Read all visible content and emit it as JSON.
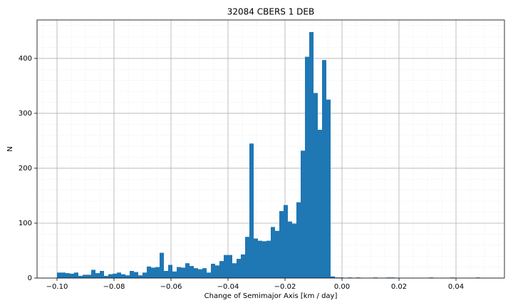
{
  "chart_data": {
    "type": "histogram",
    "title": "32084 CBERS 1 DEB",
    "xlabel": "Change of Semimajor Axis [km / day]",
    "ylabel": "N",
    "color": "#1f77b4",
    "grid": true,
    "minor_grid": true,
    "bins": [
      -0.1,
      -0.0985,
      -0.097,
      -0.0955,
      -0.094,
      -0.0925,
      -0.091,
      -0.0895,
      -0.088,
      -0.0865,
      -0.085,
      -0.0835,
      -0.082,
      -0.0805,
      -0.079,
      -0.0775,
      -0.076,
      -0.0745,
      -0.073,
      -0.0715,
      -0.07,
      -0.0685,
      -0.067,
      -0.0655,
      -0.064,
      -0.0625,
      -0.061,
      -0.0595,
      -0.058,
      -0.0565,
      -0.055,
      -0.0535,
      -0.052,
      -0.0505,
      -0.049,
      -0.0475,
      -0.046,
      -0.0445,
      -0.043,
      -0.0415,
      -0.04,
      -0.0385,
      -0.037,
      -0.0355,
      -0.034,
      -0.0325,
      -0.031,
      -0.0295,
      -0.028,
      -0.0265,
      -0.025,
      -0.0235,
      -0.022,
      -0.0205,
      -0.019,
      -0.0175,
      -0.016,
      -0.0145,
      -0.013,
      -0.0115,
      -0.01,
      -0.0085,
      -0.007,
      -0.0055,
      -0.004,
      -0.0025,
      -0.001,
      0.0005,
      0.002,
      0.0035,
      0.005,
      0.0065,
      0.008,
      0.0095,
      0.011,
      0.0125,
      0.014,
      0.0155,
      0.017,
      0.0185,
      0.02,
      0.0215,
      0.023,
      0.0245,
      0.026,
      0.0275,
      0.029,
      0.0305,
      0.032,
      0.0335,
      0.035,
      0.0365,
      0.038,
      0.0395,
      0.041,
      0.0425,
      0.044,
      0.0455,
      0.047,
      0.0485,
      0.05
    ],
    "values": [
      10,
      10,
      9,
      8,
      10,
      4,
      6,
      6,
      15,
      9,
      13,
      4,
      7,
      8,
      10,
      7,
      5,
      13,
      11,
      5,
      10,
      21,
      19,
      20,
      46,
      13,
      24,
      12,
      20,
      19,
      27,
      22,
      18,
      16,
      18,
      10,
      26,
      23,
      31,
      42,
      42,
      27,
      35,
      43,
      75,
      245,
      72,
      68,
      67,
      68,
      93,
      86,
      122,
      133,
      103,
      99,
      138,
      232,
      403,
      448,
      337,
      270,
      397,
      325,
      3,
      1,
      1,
      0,
      1,
      0,
      1,
      0,
      0,
      0,
      1,
      0,
      0,
      1,
      1,
      0,
      0,
      0,
      0,
      0,
      0,
      0,
      0,
      1,
      0,
      0,
      0,
      0,
      1,
      0,
      0,
      0,
      0,
      0,
      1,
      0
    ],
    "xlim": [
      -0.107,
      0.057
    ],
    "xticks": [
      {
        "value": -0.1,
        "label": "−0.10"
      },
      {
        "value": -0.08,
        "label": "−0.08"
      },
      {
        "value": -0.06,
        "label": "−0.06"
      },
      {
        "value": -0.04,
        "label": "−0.04"
      },
      {
        "value": -0.02,
        "label": "−0.02"
      },
      {
        "value": 0,
        "label": "0.00"
      },
      0.02,
      0.04
    ],
    "xminorticks": [
      -0.105,
      -0.1,
      -0.095,
      -0.09,
      -0.085,
      -0.08,
      -0.075,
      -0.07,
      -0.065,
      -0.06,
      -0.055,
      -0.05,
      -0.045,
      -0.04,
      -0.035,
      -0.03,
      -0.025,
      -0.02,
      -0.015,
      -0.01,
      -0.005,
      0,
      0.005,
      0.01,
      0.015,
      0.02,
      0.025,
      0.03,
      0.035,
      0.04,
      0.045,
      0.05,
      0.055
    ],
    "ylim": [
      0,
      470
    ],
    "yticks": [
      0,
      100,
      200,
      300,
      400
    ],
    "yminorticks": [
      0,
      20,
      40,
      60,
      80,
      100,
      120,
      140,
      160,
      180,
      200,
      220,
      240,
      260,
      280,
      300,
      320,
      340,
      360,
      380,
      400,
      420,
      440,
      460
    ]
  }
}
